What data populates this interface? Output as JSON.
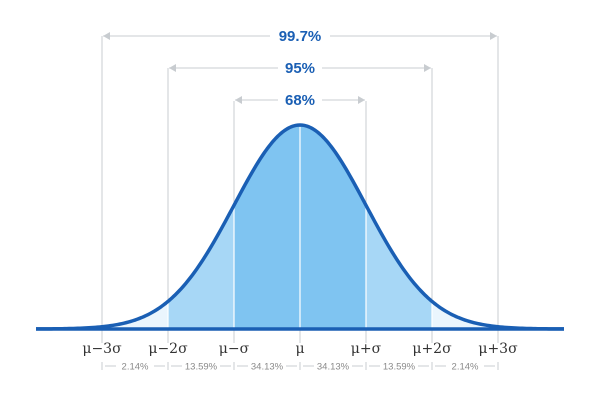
{
  "colors": {
    "curve": "#1a5fb4",
    "band_outer": "#eaf5fd",
    "band_mid": "#a7d7f6",
    "band_inner": "#7fc4f1",
    "guide": "#c8ccd0",
    "range_text": "#1a5fb4",
    "pct_text": "#8a8a8a",
    "tick_text": "#333333"
  },
  "chart_data": {
    "type": "area",
    "title": "",
    "xlabel": "",
    "ylabel": "",
    "x_range_sigma": [
      -4,
      4
    ],
    "grid": false,
    "tick_labels": [
      "μ−3σ",
      "μ−2σ",
      "μ−σ",
      "μ",
      "μ+σ",
      "μ+2σ",
      "μ+3σ"
    ],
    "tick_positions_sigma": [
      -3,
      -2,
      -1,
      0,
      1,
      2,
      3
    ],
    "ranges": [
      {
        "label": "68%",
        "from_sigma": -1,
        "to_sigma": 1
      },
      {
        "label": "95%",
        "from_sigma": -2,
        "to_sigma": 2
      },
      {
        "label": "99.7%",
        "from_sigma": -3,
        "to_sigma": 3
      }
    ],
    "segments": [
      {
        "label": "2.14%",
        "from_sigma": -3,
        "to_sigma": -2
      },
      {
        "label": "13.59%",
        "from_sigma": -2,
        "to_sigma": -1
      },
      {
        "label": "34.13%",
        "from_sigma": -1,
        "to_sigma": 0
      },
      {
        "label": "34.13%",
        "from_sigma": 0,
        "to_sigma": 1
      },
      {
        "label": "13.59%",
        "from_sigma": 1,
        "to_sigma": 2
      },
      {
        "label": "2.14%",
        "from_sigma": 2,
        "to_sigma": 3
      }
    ]
  }
}
